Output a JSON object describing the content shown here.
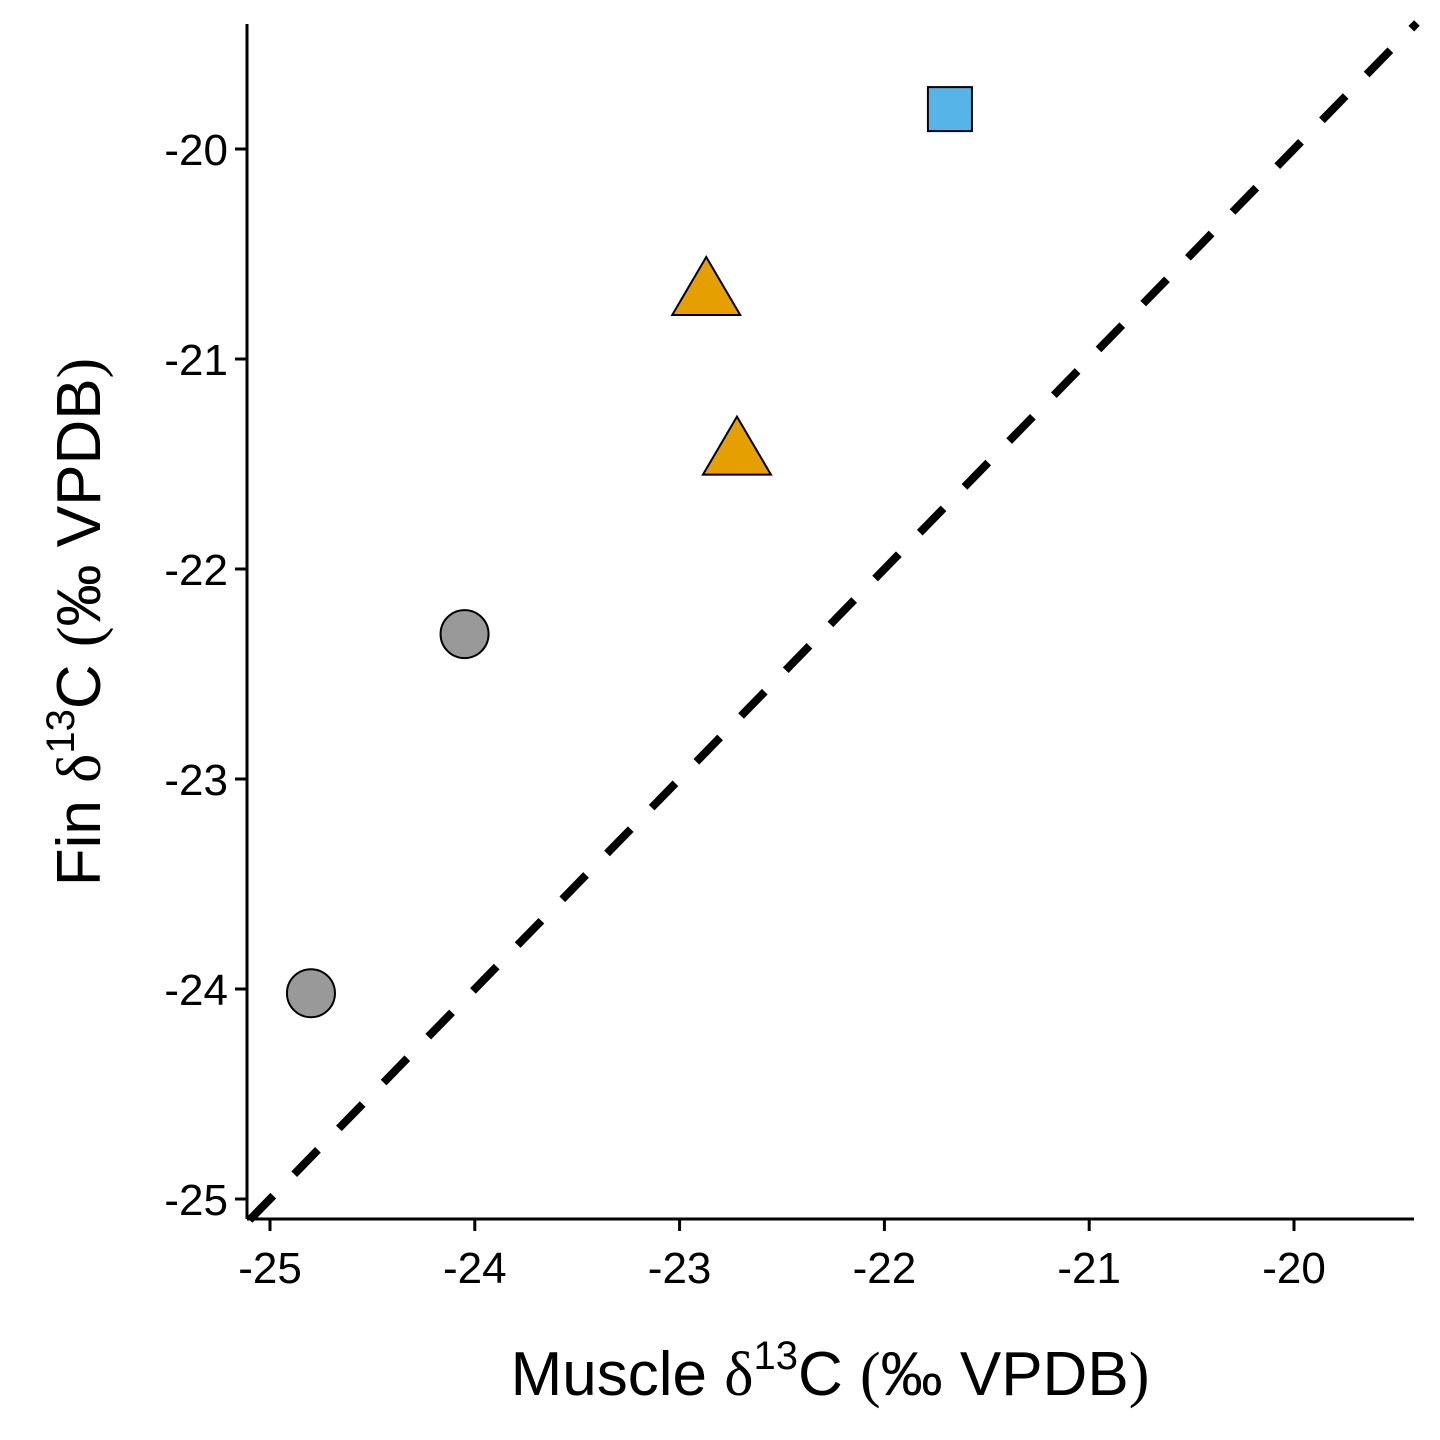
{
  "chart_data": {
    "type": "scatter",
    "title": "",
    "xlabel": {
      "prefix": "Muscle ",
      "delta": "δ",
      "sup": "13",
      "element": "C ",
      "open_paren": "(",
      "unit": "‰ VPDB",
      "close_paren": ")"
    },
    "ylabel": {
      "prefix": "Fin ",
      "delta": "δ",
      "sup": "13",
      "element": "C ",
      "open_paren": "(",
      "unit": "‰ VPDB",
      "close_paren": ")"
    },
    "xlim": [
      -25.1,
      -19.4
    ],
    "ylim": [
      -25.1,
      -19.4
    ],
    "x_ticks": [
      -25,
      -24,
      -23,
      -22,
      -21,
      -20
    ],
    "y_ticks": [
      -25,
      -24,
      -23,
      -22,
      -21,
      -20
    ],
    "x_tick_labels": [
      "-25",
      "-24",
      "-23",
      "-22",
      "-21",
      "-20"
    ],
    "y_tick_labels": [
      "-25",
      "-24",
      "-23",
      "-22",
      "-21",
      "-20"
    ],
    "grid": false,
    "reference_line": {
      "slope": 1,
      "intercept": 0,
      "style": "dashed",
      "color": "#000000"
    },
    "series": [
      {
        "shape": "circle",
        "color": "#999999",
        "points": [
          {
            "x": -24.8,
            "y": -24.02
          },
          {
            "x": -24.05,
            "y": -22.31
          }
        ]
      },
      {
        "shape": "triangle",
        "color": "#E69F00",
        "points": [
          {
            "x": -22.87,
            "y": -20.68
          },
          {
            "x": -22.72,
            "y": -21.44
          }
        ]
      },
      {
        "shape": "square",
        "color": "#56B4E9",
        "points": [
          {
            "x": -21.68,
            "y": -19.81
          }
        ]
      }
    ]
  }
}
